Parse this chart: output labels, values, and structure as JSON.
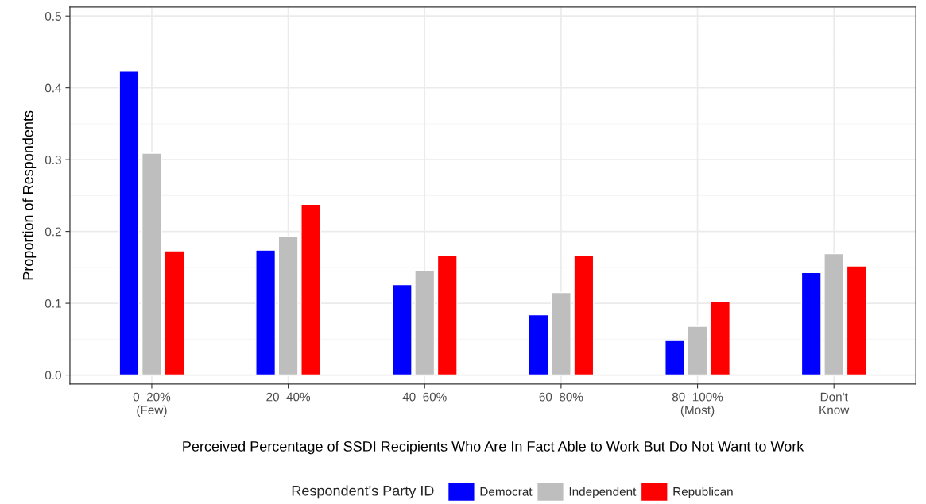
{
  "chart_data": {
    "type": "bar",
    "categories": [
      "0–20%\n(Few)",
      "20–40%",
      "40–60%",
      "60–80%",
      "80–100%\n(Most)",
      "Don't\nKnow"
    ],
    "series": [
      {
        "name": "Democrat",
        "color": "#0000ff",
        "values": [
          0.423,
          0.174,
          0.126,
          0.084,
          0.048,
          0.143
        ]
      },
      {
        "name": "Independent",
        "color": "#bebebe",
        "values": [
          0.309,
          0.193,
          0.145,
          0.115,
          0.068,
          0.169
        ]
      },
      {
        "name": "Republican",
        "color": "#ff0000",
        "values": [
          0.173,
          0.238,
          0.167,
          0.167,
          0.102,
          0.152
        ]
      }
    ],
    "xlabel": "Perceived Percentage of SSDI Recipients Who Are In Fact Able to Work But Do Not Want to Work",
    "ylabel": "Proportion of Respondents",
    "legend_title": "Respondent's Party ID",
    "ylim": [
      -0.0125,
      0.5125
    ],
    "yticks": [
      {
        "value": 0,
        "label": "0.0"
      },
      0.1,
      0.2,
      0.3,
      0.4,
      0.5
    ],
    "grid": true,
    "legend": "bottom"
  }
}
